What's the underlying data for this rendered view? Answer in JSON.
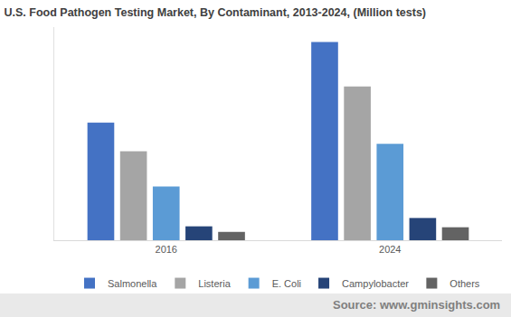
{
  "chart_data": {
    "type": "bar",
    "title": "U.S. Food Pathogen Testing Market, By Contaminant, 2013-2024, (Million tests)",
    "categories": [
      "2016",
      "2024"
    ],
    "series": [
      {
        "name": "Salmonella",
        "color": "#4472c4",
        "values": [
          12.7,
          21.4
        ]
      },
      {
        "name": "Listeria",
        "color": "#a5a5a5",
        "values": [
          9.6,
          16.6
        ]
      },
      {
        "name": "E. Coli",
        "color": "#5b9bd5",
        "values": [
          5.8,
          10.4
        ]
      },
      {
        "name": "Campylobacter",
        "color": "#264478",
        "values": [
          1.5,
          2.4
        ]
      },
      {
        "name": "Others",
        "color": "#636363",
        "values": [
          0.9,
          1.4
        ]
      }
    ],
    "ylim": [
      0,
      23
    ],
    "tick_labels": "x",
    "grid": false,
    "legend": "bottom",
    "annotations": [
      "Source: www.gminsights.com"
    ]
  }
}
